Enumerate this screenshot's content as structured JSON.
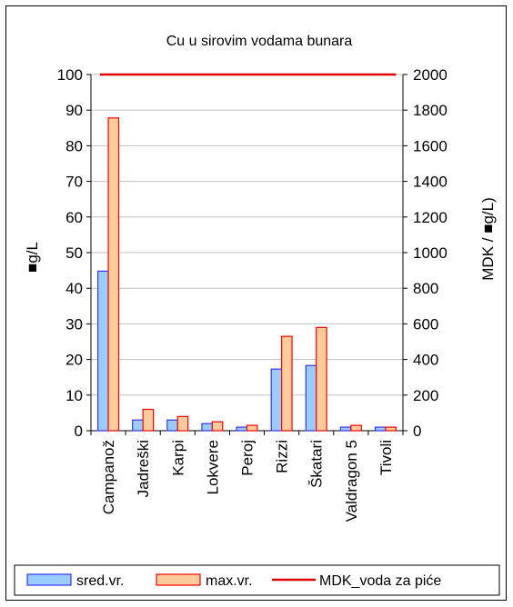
{
  "chart_data": {
    "type": "bar",
    "title": "Cu u sirovim vodama bunara",
    "ylabel_left": "■g/L",
    "ylabel_right": "MDK / ■g/L)",
    "categories": [
      "Campanož",
      "Jadreški",
      "Karpi",
      "Lokvere",
      "Peroj",
      "Rizzi",
      "Škatari",
      "Valdragon 5",
      "Tivoli"
    ],
    "ylim_left": [
      0,
      100
    ],
    "yticks_left": [
      0,
      10,
      20,
      30,
      40,
      50,
      60,
      70,
      80,
      90,
      100
    ],
    "ylim_right": [
      0,
      2000
    ],
    "yticks_right": [
      0,
      200,
      400,
      600,
      800,
      1000,
      1200,
      1400,
      1600,
      1800,
      2000
    ],
    "grid": true,
    "legend_position": "bottom",
    "series": [
      {
        "name": "sred.vr.",
        "type": "bar",
        "axis": "left",
        "color": "#99CCFF",
        "edge": "#3333FF",
        "values": [
          44.8,
          3.0,
          3.0,
          2.0,
          1.0,
          17.3,
          18.3,
          1.0,
          1.0
        ]
      },
      {
        "name": "max.vr.",
        "type": "bar",
        "axis": "left",
        "color": "#FFCC99",
        "edge": "#FF0000",
        "values": [
          87.8,
          6.0,
          4.0,
          2.5,
          1.5,
          26.5,
          29.0,
          1.5,
          1.0
        ]
      },
      {
        "name": "MDK_voda za piće",
        "type": "line",
        "axis": "right",
        "color": "#DD0000",
        "values": [
          2000,
          2000,
          2000,
          2000,
          2000,
          2000,
          2000,
          2000,
          2000
        ]
      }
    ]
  }
}
